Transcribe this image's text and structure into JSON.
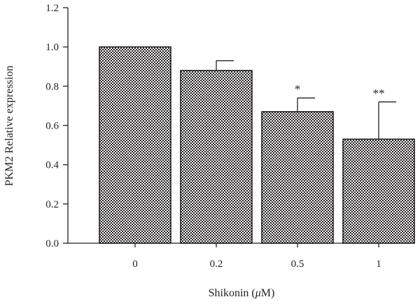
{
  "chart_data": {
    "type": "bar",
    "categories": [
      "0",
      "0.2",
      "0.5",
      "1"
    ],
    "values": [
      1.0,
      0.88,
      0.67,
      0.53
    ],
    "errors": [
      0,
      0.05,
      0.07,
      0.19
    ],
    "annotations": [
      "",
      "",
      "*",
      "**"
    ],
    "xlabel_parts": [
      "Shikonin (",
      "μ",
      "M)"
    ],
    "ylabel": "PKM2 Relative expression",
    "ylim": [
      0,
      1.2
    ],
    "yticks": [
      "0.0",
      "0.2",
      "0.4",
      "0.6",
      "0.8",
      "1.0",
      "1.2"
    ],
    "grid": false,
    "legend": "none",
    "colors": {
      "bar_pattern_dark": "#231f20",
      "bar_pattern_light": "#ffffff",
      "axis": "#231f20"
    }
  }
}
